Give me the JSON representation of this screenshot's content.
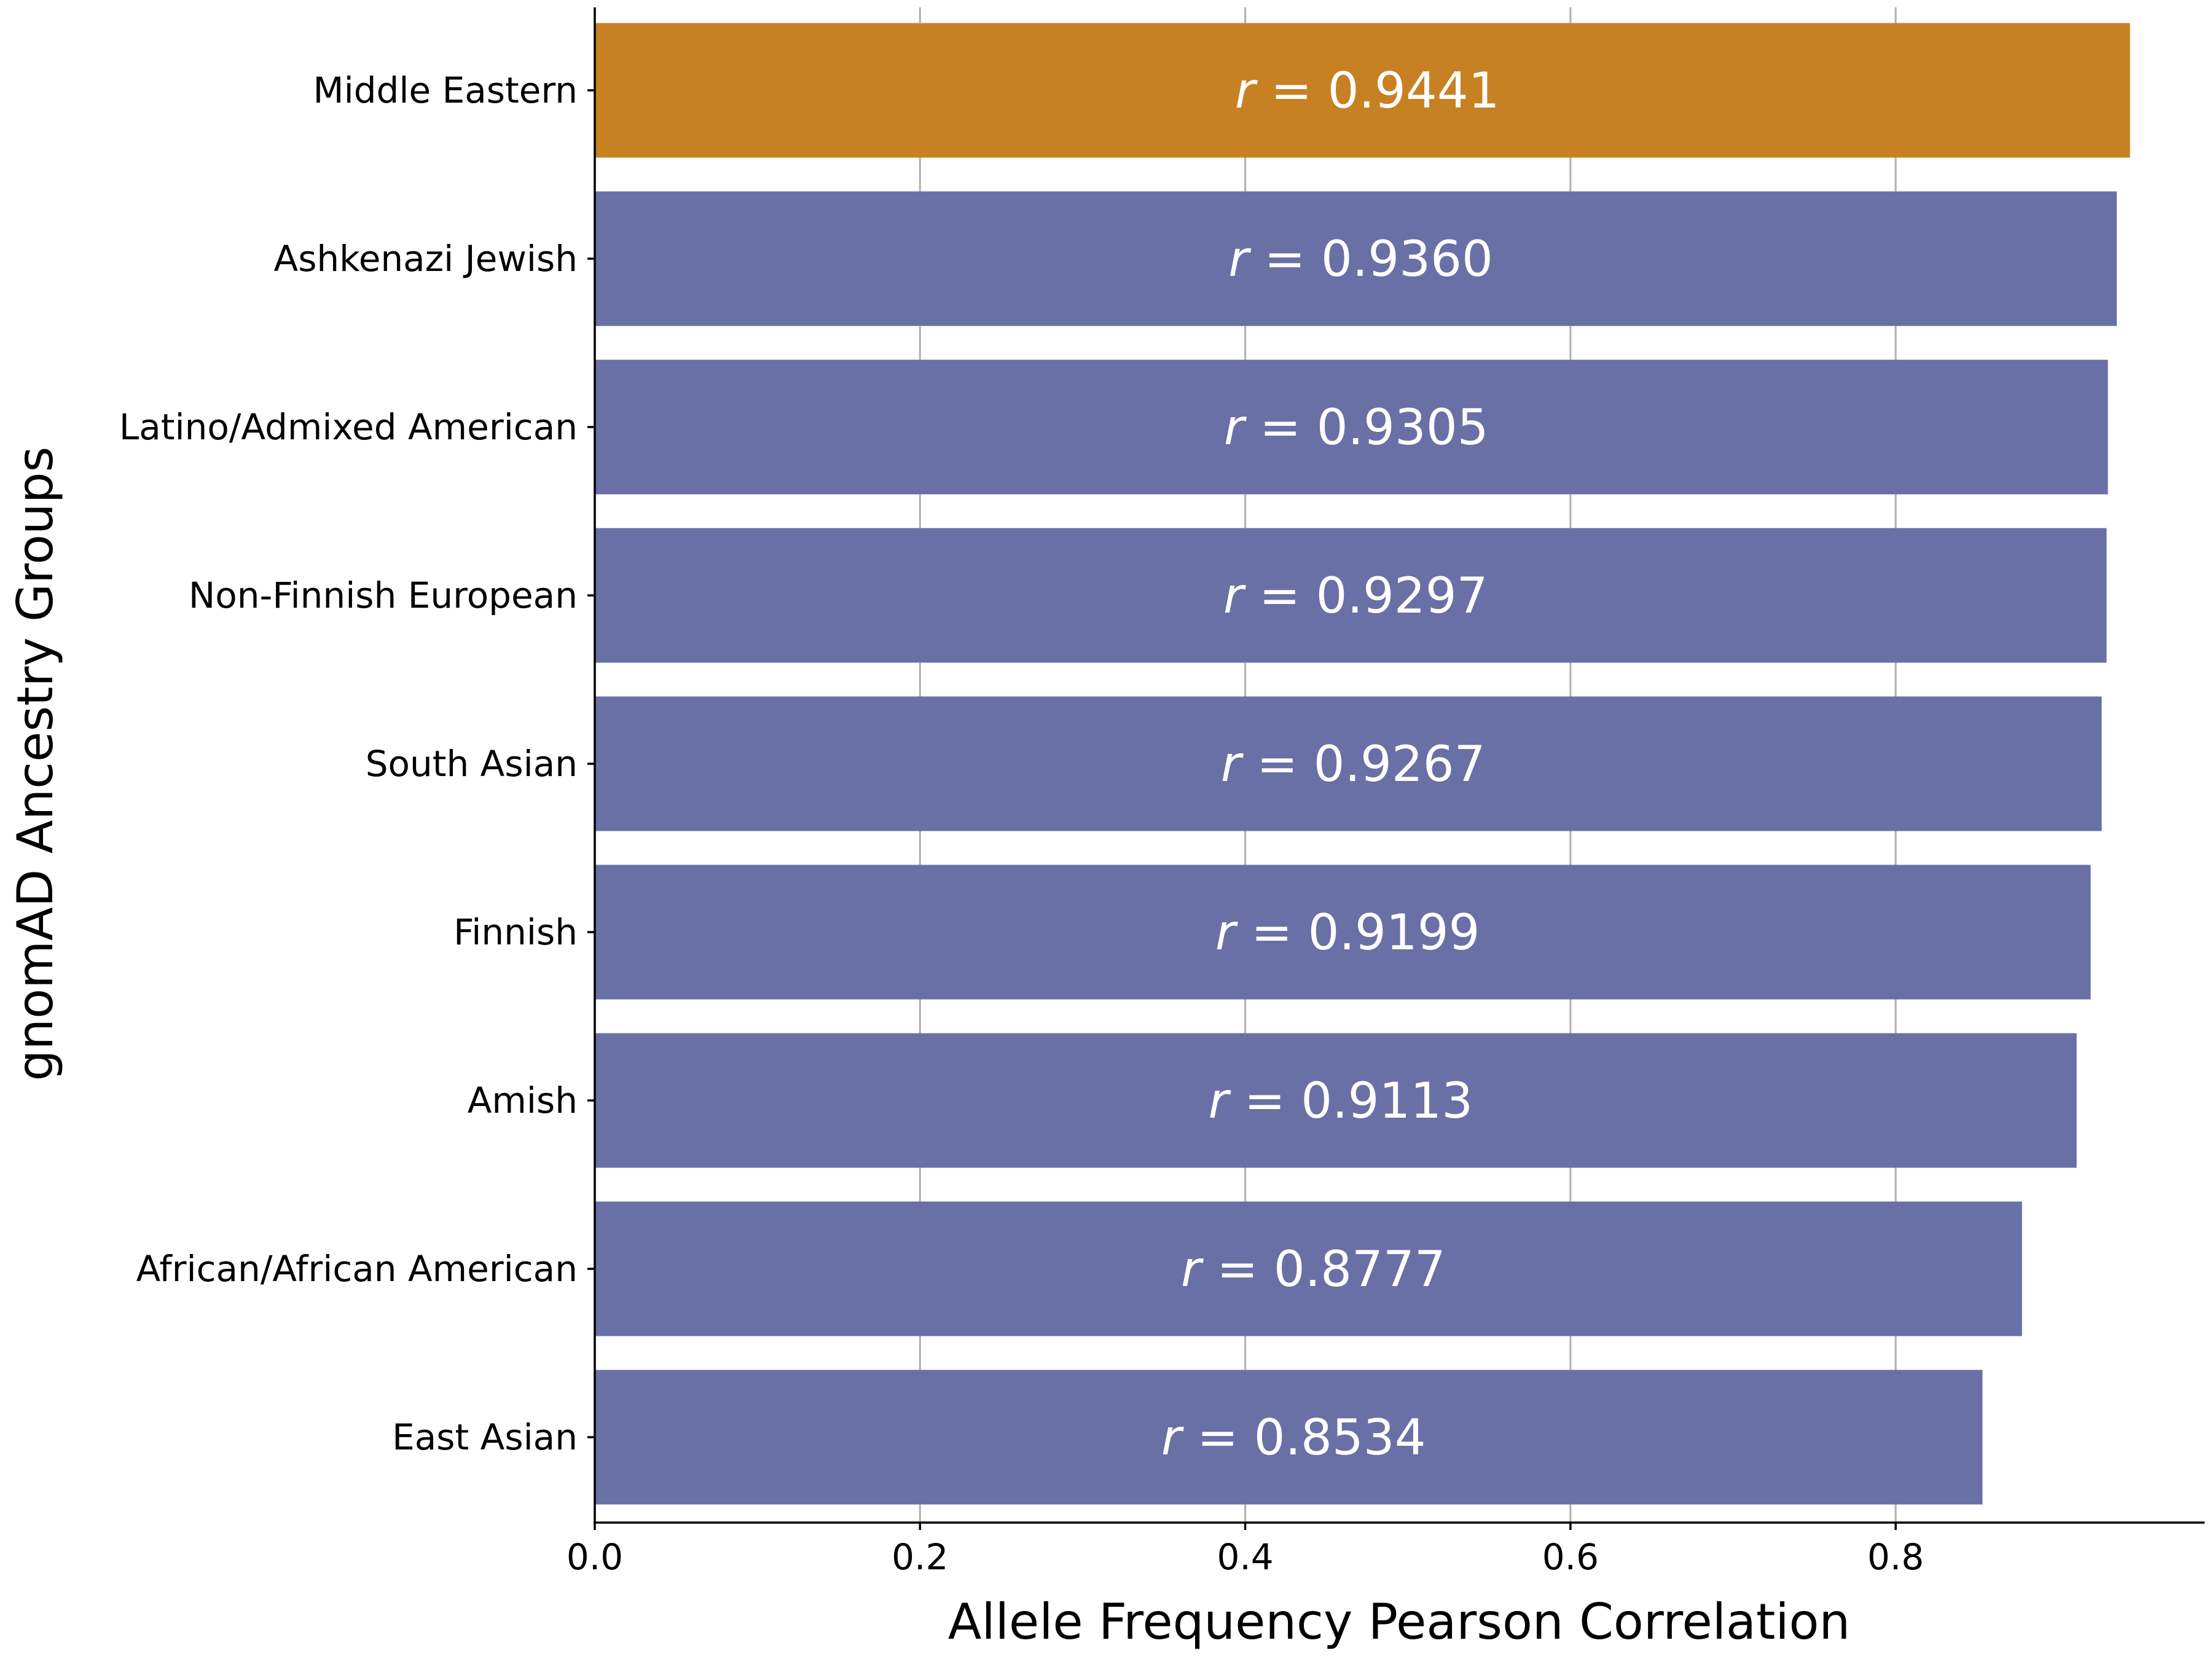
{
  "chart_data": {
    "type": "bar",
    "orientation": "horizontal",
    "categories": [
      "Middle Eastern",
      "Ashkenazi Jewish",
      "Latino/Admixed American",
      "Non-Finnish European",
      "South Asian",
      "Finnish",
      "Amish",
      "African/African American",
      "East Asian"
    ],
    "values": [
      0.9441,
      0.936,
      0.9305,
      0.9297,
      0.9267,
      0.9199,
      0.9113,
      0.8777,
      0.8534
    ],
    "value_labels": [
      "= 0.9441",
      "= 0.9360",
      "= 0.9305",
      "= 0.9297",
      "= 0.9267",
      "= 0.9199",
      "= 0.9113",
      "= 0.8777",
      "= 0.8534"
    ],
    "value_label_symbol": "r",
    "xlabel": "Allele Frequency Pearson Correlation",
    "ylabel": "gnomAD Ancestry Groups",
    "xlim": [
      0,
      0.99
    ],
    "xticks": [
      "0.0",
      "0.2",
      "0.4",
      "0.6",
      "0.8"
    ],
    "xtick_values": [
      0,
      0.2,
      0.4,
      0.6,
      0.8
    ],
    "grid": "vertical",
    "colors": {
      "highlight": "#c88122",
      "default": "#6870a6",
      "grid": "#b0b0b0"
    },
    "highlight_index": 0
  }
}
